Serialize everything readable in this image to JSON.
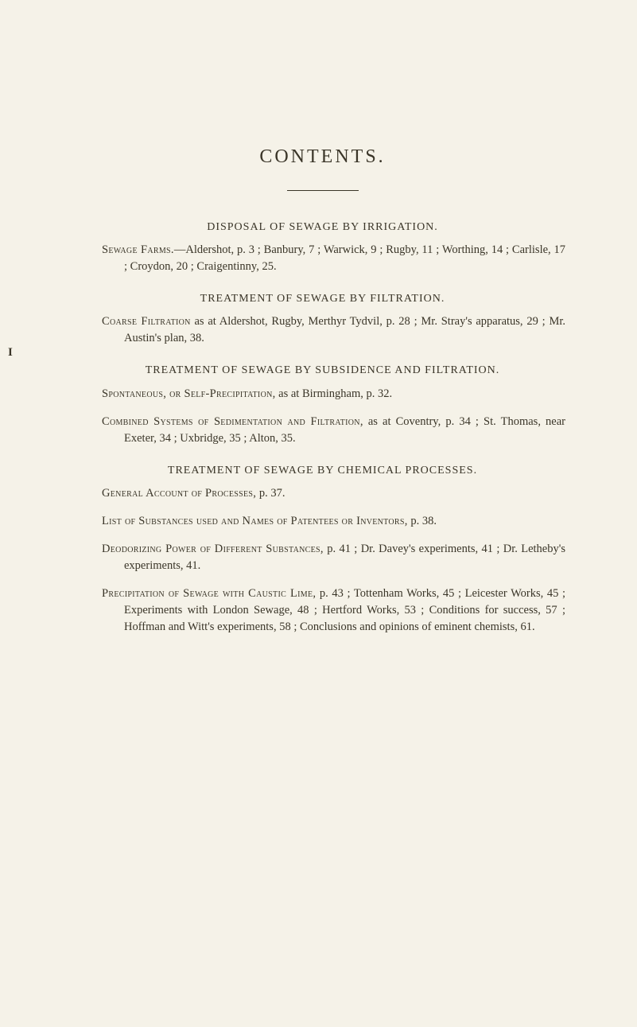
{
  "page": {
    "title": "CONTENTS.",
    "sections": [
      {
        "heading": "DISPOSAL OF SEWAGE BY IRRIGATION.",
        "entries": [
          {
            "lead": "Sewage Farms.",
            "body": "—Aldershot, p. 3 ; Banbury, 7 ; Warwick, 9 ; Rugby, 11 ; Worthing, 14 ; Carlisle, 17 ; Croydon, 20 ; Craigentinny, 25."
          }
        ]
      },
      {
        "heading": "TREATMENT OF SEWAGE BY FILTRATION.",
        "entries": [
          {
            "lead": "Coarse Filtration",
            "body": " as at Aldershot, Rugby, Merthyr Tydvil, p. 28 ; Mr. Stray's apparatus, 29 ; Mr. Austin's plan, 38."
          }
        ]
      },
      {
        "heading": "TREATMENT OF SEWAGE BY SUBSIDENCE AND FILTRATION.",
        "entries": [
          {
            "lead": "Spontaneous, or Self-Precipitation,",
            "body": " as at Birmingham, p. 32."
          },
          {
            "lead": "Combined Systems of Sedimentation and Filtration,",
            "body": " as at Coventry, p. 34 ; St. Thomas, near Exeter, 34 ; Uxbridge, 35 ; Alton, 35."
          }
        ]
      },
      {
        "heading": "TREATMENT OF SEWAGE BY CHEMICAL PROCESSES.",
        "entries": [
          {
            "lead": "General Account of Processes,",
            "body": " p. 37."
          },
          {
            "lead": "List of Substances used and Names of Patentees or Inventors,",
            "body": " p. 38."
          },
          {
            "lead": "Deodorizing Power of Different Substances,",
            "body": " p. 41 ; Dr. Davey's experiments, 41 ; Dr. Letheby's experiments, 41."
          },
          {
            "lead": "Precipitation of Sewage with Caustic Lime,",
            "body": " p. 43 ; Tottenham Works, 45 ; Leicester Works, 45 ; Experiments with London Sewage, 48 ; Hertford Works, 53 ; Conditions for success, 57 ; Hoffman and Witt's experiments, 58 ; Conclusions and opinions of eminent chemists, 61."
          }
        ]
      }
    ],
    "side_mark": "I",
    "colors": {
      "background": "#f5f2e8",
      "text": "#3a3528"
    },
    "typography": {
      "title_fontsize": 24,
      "heading_fontsize": 14,
      "body_fontsize": 14.5,
      "font_family": "Georgia / Times-like serif"
    }
  }
}
